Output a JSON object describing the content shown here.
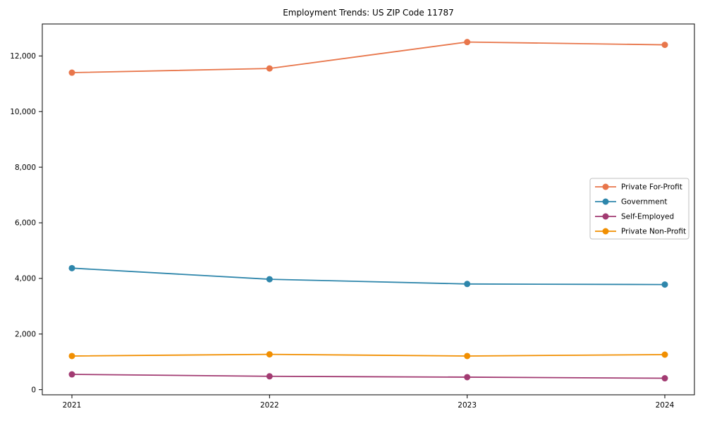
{
  "chart_data": {
    "type": "line",
    "title": "Employment Trends: US ZIP Code 11787",
    "x": [
      2021,
      2022,
      2023,
      2024
    ],
    "x_tick_labels": [
      "2021",
      "2022",
      "2023",
      "2024"
    ],
    "y_ticks": [
      0,
      2000,
      4000,
      6000,
      8000,
      10000,
      12000
    ],
    "y_tick_labels": [
      "0",
      "2,000",
      "4,000",
      "6,000",
      "8,000",
      "10,000",
      "12,000"
    ],
    "ylim": [
      -185,
      13150
    ],
    "grid": false,
    "legend_position": "center-right",
    "axis_color": "#000000",
    "legend_border_color": "#bfbfbf",
    "series": [
      {
        "name": "Private For-Profit",
        "color": "#e8764b",
        "values": [
          11400,
          11550,
          12500,
          12400
        ]
      },
      {
        "name": "Government",
        "color": "#2e86ab",
        "values": [
          4370,
          3970,
          3800,
          3780
        ]
      },
      {
        "name": "Self-Employed",
        "color": "#a23b72",
        "values": [
          550,
          480,
          450,
          410
        ]
      },
      {
        "name": "Private Non-Profit",
        "color": "#f18f01",
        "values": [
          1210,
          1270,
          1210,
          1260
        ]
      }
    ]
  }
}
